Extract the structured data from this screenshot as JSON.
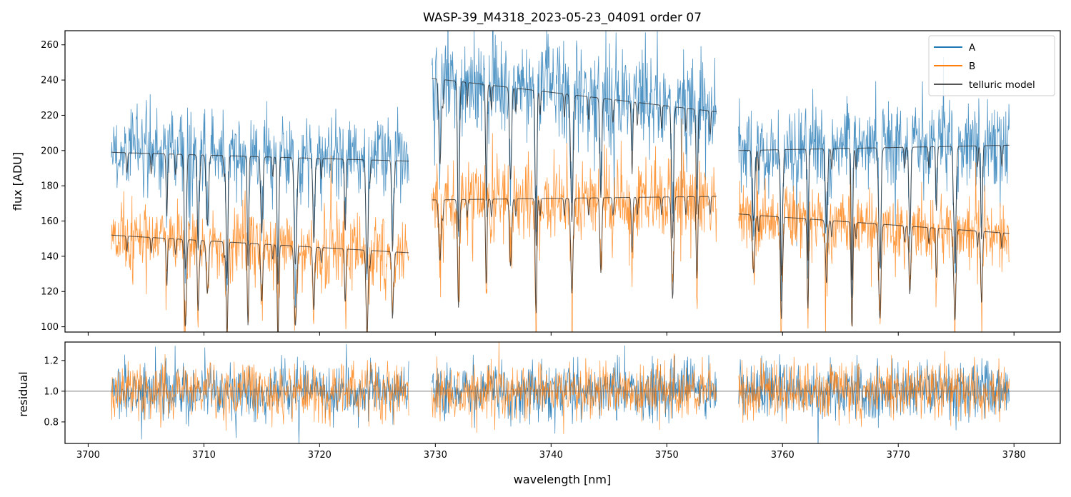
{
  "chart_data": [
    {
      "type": "line",
      "panel": "top",
      "title": "WASP-39_M4318_2023-05-23_04091  order 07",
      "xlabel": "",
      "ylabel": "flux [ADU]",
      "xlim": [
        3698,
        3784
      ],
      "ylim": [
        97,
        268
      ],
      "xticks": [
        3700,
        3710,
        3720,
        3730,
        3740,
        3750,
        3760,
        3770,
        3780
      ],
      "yticks": [
        100,
        120,
        140,
        160,
        180,
        200,
        220,
        240,
        260
      ],
      "ytick_labels": [
        "100",
        "120",
        "140",
        "160",
        "180",
        "200",
        "220",
        "240",
        "260"
      ],
      "legend_position": "top-right",
      "segments": [
        {
          "x_range": [
            3702.0,
            3727.7
          ],
          "A_level": [
            199,
            194
          ],
          "B_level": [
            152,
            142
          ],
          "A_noise": 19,
          "B_noise": 17
        },
        {
          "x_range": [
            3729.7,
            3754.3
          ],
          "A_level": [
            241,
            222
          ],
          "B_level": [
            172,
            174
          ],
          "A_noise": 24,
          "B_noise": 19
        },
        {
          "x_range": [
            3756.2,
            3779.6
          ],
          "A_level": [
            200,
            203
          ],
          "B_level": [
            164,
            153
          ],
          "A_noise": 20,
          "B_noise": 17
        }
      ],
      "absorption_lines": [
        3706.8,
        3708.4,
        3709.5,
        3710.3,
        3712.0,
        3713.8,
        3715.0,
        3716.4,
        3717.9,
        3719.5,
        3722.2,
        3724.1,
        3726.3,
        3730.4,
        3732.0,
        3734.4,
        3736.5,
        3738.7,
        3741.8,
        3744.3,
        3747.0,
        3750.5,
        3752.6,
        3757.5,
        3759.9,
        3762.2,
        3763.8,
        3766.0,
        3768.4,
        3771.0,
        3773.3,
        3774.9,
        3777.2
      ],
      "series": [
        {
          "name": "A",
          "color": "#1f77b4"
        },
        {
          "name": "B",
          "color": "#ff7f0e"
        },
        {
          "name": "telluric model",
          "color": "#555555"
        }
      ]
    },
    {
      "type": "line",
      "panel": "bottom",
      "xlabel": "wavelength [nm]",
      "ylabel": "residual",
      "xlim": [
        3698,
        3784
      ],
      "ylim": [
        0.66,
        1.32
      ],
      "xticks": [
        3700,
        3710,
        3720,
        3730,
        3740,
        3750,
        3760,
        3770,
        3780
      ],
      "xtick_labels": [
        "3700",
        "3710",
        "3720",
        "3730",
        "3740",
        "3750",
        "3760",
        "3770",
        "3780"
      ],
      "yticks": [
        0.8,
        1.0,
        1.2
      ],
      "ytick_labels": [
        "0.8",
        "1.0",
        "1.2"
      ],
      "reference_line": 1.0,
      "residual_scatter": 0.09,
      "series": [
        {
          "name": "A",
          "color": "#1f77b4"
        },
        {
          "name": "B",
          "color": "#ff7f0e"
        }
      ]
    }
  ]
}
